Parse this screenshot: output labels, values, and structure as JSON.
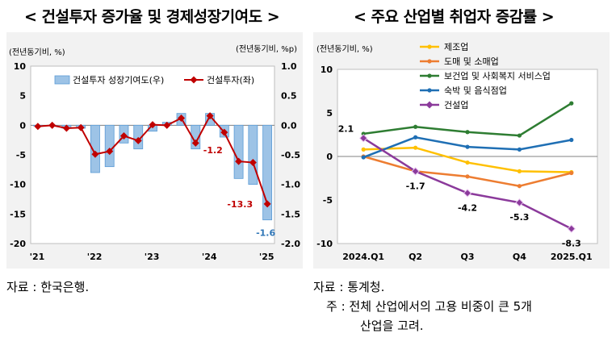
{
  "left": {
    "title": "< 건설투자 증가율 및 경제성장기여도 >",
    "unit_left": "(전년동기비, %)",
    "unit_right": "(전년동기비, %p)",
    "source": "자료 : 한국은행.",
    "chart_data": {
      "type": "bar+line",
      "x_labels": [
        "'21",
        "'22",
        "'23",
        "'24",
        "'25"
      ],
      "ylim_left": [
        -20,
        10
      ],
      "yticks_left": [
        10,
        5,
        0,
        -5,
        -10,
        -15,
        -20
      ],
      "ylim_right": [
        -2.0,
        1.0
      ],
      "yticks_right": [
        "1.0",
        "0.5",
        "0.0",
        "-0.5",
        "-1.0",
        "-1.5",
        "-2.0"
      ],
      "legend_position": "top",
      "bar_series": {
        "name": "건설투자 성장기여도(우)",
        "axis": "right",
        "color": "#9dc3e6",
        "values": [
          -0.01,
          0.0,
          -0.05,
          -0.05,
          -0.8,
          -0.7,
          -0.3,
          -0.4,
          -0.1,
          0.05,
          0.2,
          -0.4,
          0.2,
          -0.2,
          -0.9,
          -1.0,
          -1.6
        ]
      },
      "line_series": {
        "name": "건설투자(좌)",
        "axis": "left",
        "color": "#c00000",
        "values": [
          -0.2,
          0.0,
          -0.5,
          -0.4,
          -4.9,
          -4.4,
          -1.8,
          -2.6,
          0.1,
          0.0,
          1.2,
          -3.0,
          1.6,
          -1.2,
          -6.1,
          -6.3,
          -13.3
        ]
      },
      "annotations": [
        {
          "text": "-1.2",
          "index": 13,
          "value": -1.2,
          "color": "#c00000"
        },
        {
          "text": "-13.3",
          "index": 16,
          "value": -13.3,
          "color": "#c00000"
        },
        {
          "text": "-1.6",
          "index": 16,
          "value": -1.6,
          "color": "#2e75b6"
        }
      ]
    }
  },
  "right": {
    "title": "< 주요 산업별 취업자 증감률 >",
    "unit_left": "(전년동기비, %)",
    "source": "자료 : 통계청.",
    "note_line1": "주 : 전체 산업에서의 고용 비중이 큰 5개",
    "note_line2": "산업을 고려.",
    "chart_data": {
      "type": "line",
      "categories": [
        "2024.Q1",
        "Q2",
        "Q3",
        "Q4",
        "2025.Q1"
      ],
      "ylim": [
        -10,
        10
      ],
      "yticks": [
        10,
        5,
        0,
        -5,
        -10
      ],
      "legend_position": "top-right",
      "series": [
        {
          "name": "제조업",
          "color": "#ffc000",
          "values": [
            0.8,
            1.0,
            -0.7,
            -1.7,
            -1.8
          ]
        },
        {
          "name": "도매 및 소매업",
          "color": "#ed7d31",
          "values": [
            0.0,
            -1.7,
            -2.3,
            -3.4,
            -1.9
          ]
        },
        {
          "name": "보건업 및 사회복지 서비스업",
          "color": "#2e7d32",
          "values": [
            2.6,
            3.4,
            2.8,
            2.4,
            6.1
          ]
        },
        {
          "name": "숙박 및 음식점업",
          "color": "#1f6fb4",
          "values": [
            -0.1,
            2.2,
            1.1,
            0.8,
            1.9
          ]
        },
        {
          "name": "건설업",
          "color": "#8b3a9b",
          "values": [
            2.1,
            -1.7,
            -4.2,
            -5.3,
            -8.3
          ]
        }
      ],
      "annotations": [
        {
          "text": "2.1",
          "series": 4,
          "index": 0
        },
        {
          "text": "-1.7",
          "series": 4,
          "index": 1
        },
        {
          "text": "-4.2",
          "series": 4,
          "index": 2
        },
        {
          "text": "-5.3",
          "series": 4,
          "index": 3
        },
        {
          "text": "-8.3",
          "series": 4,
          "index": 4
        }
      ]
    }
  }
}
